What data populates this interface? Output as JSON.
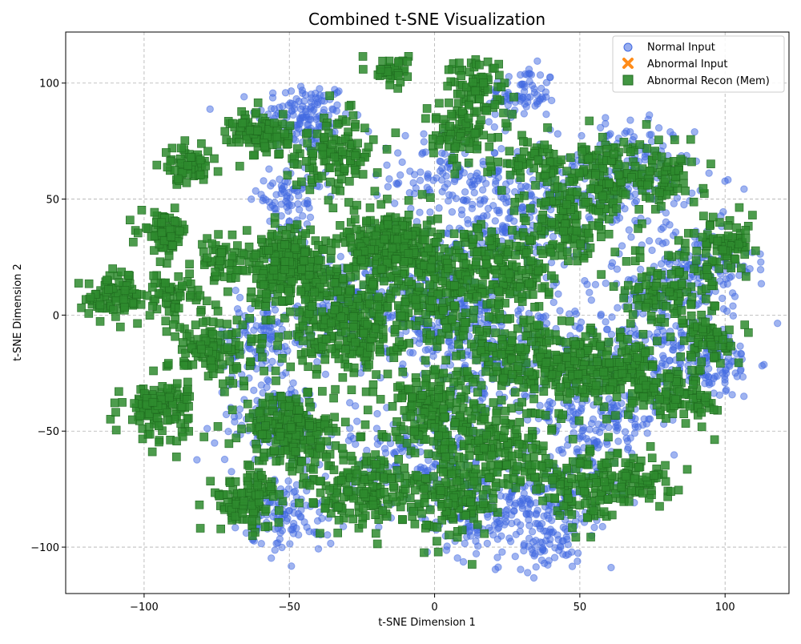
{
  "chart_data": {
    "type": "scatter",
    "title": "Combined t-SNE Visualization",
    "xlabel": "t-SNE Dimension 1",
    "ylabel": "t-SNE Dimension 2",
    "xlim": [
      -127,
      122
    ],
    "ylim": [
      -120,
      122
    ],
    "xticks": [
      -100,
      -50,
      0,
      50,
      100
    ],
    "yticks": [
      -100,
      -50,
      0,
      50,
      100
    ],
    "xtick_labels": [
      "−100",
      "−50",
      "0",
      "50",
      "100"
    ],
    "ytick_labels": [
      "−100",
      "−50",
      "0",
      "50",
      "100"
    ],
    "grid": true,
    "legend_position": "top-right",
    "series": [
      {
        "name": "Normal Input",
        "marker": "circle",
        "color": "#4169e1",
        "clusters": [
          {
            "cx": -45,
            "cy": 85,
            "sd": 8,
            "n": 150
          },
          {
            "cx": 30,
            "cy": 95,
            "sd": 6,
            "n": 80
          },
          {
            "cx": 5,
            "cy": 60,
            "sd": 10,
            "n": 120
          },
          {
            "cx": 30,
            "cy": 40,
            "sd": 12,
            "n": 200
          },
          {
            "cx": 65,
            "cy": 60,
            "sd": 12,
            "n": 200
          },
          {
            "cx": 90,
            "cy": 20,
            "sd": 10,
            "n": 160
          },
          {
            "cx": 95,
            "cy": -20,
            "sd": 8,
            "n": 120
          },
          {
            "cx": 70,
            "cy": -10,
            "sd": 15,
            "n": 220
          },
          {
            "cx": 55,
            "cy": -45,
            "sd": 12,
            "n": 180
          },
          {
            "cx": 40,
            "cy": -80,
            "sd": 10,
            "n": 150
          },
          {
            "cx": 40,
            "cy": -100,
            "sd": 5,
            "n": 50
          },
          {
            "cx": 15,
            "cy": -85,
            "sd": 10,
            "n": 140
          },
          {
            "cx": -5,
            "cy": -60,
            "sd": 12,
            "n": 160
          },
          {
            "cx": -50,
            "cy": -85,
            "sd": 8,
            "n": 120
          },
          {
            "cx": -55,
            "cy": -45,
            "sd": 10,
            "n": 140
          },
          {
            "cx": -60,
            "cy": -10,
            "sd": 8,
            "n": 100
          },
          {
            "cx": -30,
            "cy": 5,
            "sd": 12,
            "n": 200
          },
          {
            "cx": 5,
            "cy": 5,
            "sd": 15,
            "n": 260
          },
          {
            "cx": -50,
            "cy": 50,
            "sd": 6,
            "n": 80
          },
          {
            "cx": 20,
            "cy": -20,
            "sd": 12,
            "n": 180
          }
        ]
      },
      {
        "name": "Abnormal Input",
        "marker": "x",
        "color": "#ff8c1a",
        "clusters": []
      },
      {
        "name": "Abnormal Recon (Mem)",
        "marker": "square",
        "color": "#2e8b2e",
        "clusters": [
          {
            "cx": -110,
            "cy": 8,
            "sd": 5,
            "n": 80
          },
          {
            "cx": -93,
            "cy": 36,
            "sd": 4,
            "n": 70
          },
          {
            "cx": -85,
            "cy": 64,
            "sd": 4,
            "n": 60
          },
          {
            "cx": -90,
            "cy": 8,
            "sd": 5,
            "n": 60
          },
          {
            "cx": -95,
            "cy": -40,
            "sd": 6,
            "n": 120
          },
          {
            "cx": -75,
            "cy": 25,
            "sd": 5,
            "n": 50
          },
          {
            "cx": -75,
            "cy": -15,
            "sd": 8,
            "n": 120
          },
          {
            "cx": -60,
            "cy": 78,
            "sd": 5,
            "n": 100
          },
          {
            "cx": -50,
            "cy": 20,
            "sd": 8,
            "n": 260
          },
          {
            "cx": -50,
            "cy": -50,
            "sd": 8,
            "n": 200
          },
          {
            "cx": -65,
            "cy": -80,
            "sd": 6,
            "n": 100
          },
          {
            "cx": -35,
            "cy": 70,
            "sd": 8,
            "n": 120
          },
          {
            "cx": -30,
            "cy": -5,
            "sd": 10,
            "n": 260
          },
          {
            "cx": -15,
            "cy": 30,
            "sd": 8,
            "n": 240
          },
          {
            "cx": -15,
            "cy": 105,
            "sd": 3,
            "n": 40
          },
          {
            "cx": -25,
            "cy": -75,
            "sd": 10,
            "n": 180
          },
          {
            "cx": 0,
            "cy": 10,
            "sd": 12,
            "n": 220
          },
          {
            "cx": 0,
            "cy": -40,
            "sd": 10,
            "n": 180
          },
          {
            "cx": 5,
            "cy": -80,
            "sd": 8,
            "n": 120
          },
          {
            "cx": 10,
            "cy": 80,
            "sd": 8,
            "n": 100
          },
          {
            "cx": 15,
            "cy": 100,
            "sd": 5,
            "n": 60
          },
          {
            "cx": 20,
            "cy": -60,
            "sd": 10,
            "n": 160
          },
          {
            "cx": 25,
            "cy": 20,
            "sd": 10,
            "n": 160
          },
          {
            "cx": 30,
            "cy": -20,
            "sd": 10,
            "n": 140
          },
          {
            "cx": 35,
            "cy": 65,
            "sd": 6,
            "n": 60
          },
          {
            "cx": 45,
            "cy": 40,
            "sd": 8,
            "n": 120
          },
          {
            "cx": 45,
            "cy": -20,
            "sd": 8,
            "n": 100
          },
          {
            "cx": 50,
            "cy": -75,
            "sd": 8,
            "n": 120
          },
          {
            "cx": 60,
            "cy": 60,
            "sd": 8,
            "n": 140
          },
          {
            "cx": 65,
            "cy": -25,
            "sd": 8,
            "n": 160
          },
          {
            "cx": 70,
            "cy": -70,
            "sd": 6,
            "n": 80
          },
          {
            "cx": 80,
            "cy": 10,
            "sd": 8,
            "n": 100
          },
          {
            "cx": 80,
            "cy": 60,
            "sd": 6,
            "n": 60
          },
          {
            "cx": 85,
            "cy": -35,
            "sd": 6,
            "n": 80
          },
          {
            "cx": 100,
            "cy": 30,
            "sd": 6,
            "n": 80
          },
          {
            "cx": 95,
            "cy": -10,
            "sd": 6,
            "n": 60
          }
        ]
      }
    ]
  }
}
